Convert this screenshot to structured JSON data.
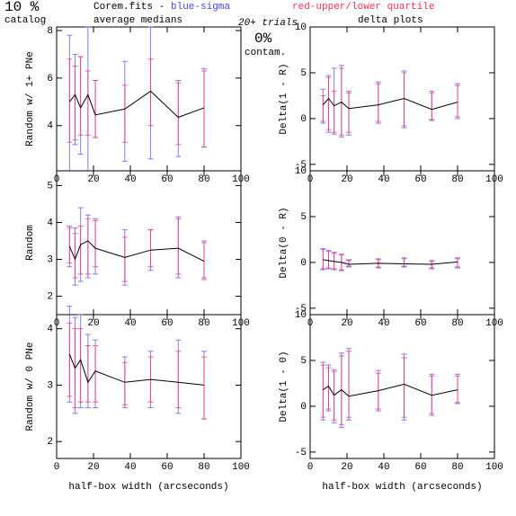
{
  "header": {
    "pct": "10 %",
    "catalog": "catalog",
    "file": "Corem.fits -",
    "blue": "blue-sigma",
    "red": "red-upper/lower quartile",
    "medians": "average medians",
    "trials": "20+ trials",
    "contam_pct": "0%",
    "contam": "contam.",
    "delta": "delta plots"
  },
  "chart_data": [
    {
      "type": "line",
      "ylabel": "Random w/ 1+ PNe",
      "xlim": [
        0,
        100
      ],
      "xticks": [
        0,
        20,
        40,
        60,
        80,
        100
      ],
      "ylim": [
        2.1,
        8.15
      ],
      "yticks": [
        4,
        6,
        8
      ],
      "x": [
        7,
        10,
        13,
        17,
        21,
        37,
        51,
        66,
        80
      ],
      "values": [
        5.0,
        5.3,
        4.75,
        5.3,
        4.45,
        4.7,
        5.45,
        4.35,
        4.75
      ],
      "blue_low": [
        2.1,
        3.2,
        2.8,
        2.1,
        3.5,
        2.5,
        2.6,
        2.7,
        3.1
      ],
      "blue_high": [
        7.8,
        7.0,
        6.9,
        8.15,
        5.9,
        6.7,
        8.15,
        5.9,
        6.4
      ],
      "red_low": [
        3.3,
        3.4,
        3.6,
        3.6,
        3.5,
        3.3,
        4.0,
        3.2,
        3.1
      ],
      "red_high": [
        6.8,
        6.5,
        6.9,
        6.3,
        5.9,
        5.7,
        6.8,
        5.8,
        6.3
      ]
    },
    {
      "type": "line",
      "ylabel": "Delta(1 - R)",
      "xlim": [
        0,
        100
      ],
      "xticks": [
        0,
        20,
        40,
        60,
        80,
        100
      ],
      "ylim": [
        -5.7,
        10
      ],
      "yticks": [
        -5,
        0,
        5,
        10
      ],
      "x": [
        7,
        10,
        13,
        17,
        21,
        37,
        51,
        66,
        80
      ],
      "values": [
        1.5,
        2.2,
        1.4,
        1.8,
        1.1,
        1.5,
        2.2,
        1.0,
        1.8
      ],
      "blue_low": [
        -0.5,
        -1.5,
        -1.7,
        -2,
        -1.8,
        -0.5,
        -1.0,
        -0.2,
        0.0
      ],
      "blue_high": [
        3.2,
        4.7,
        5.5,
        5.8,
        3.0,
        4.0,
        5.2,
        3.0,
        3.8
      ],
      "red_low": [
        -0.3,
        -1.2,
        -1.5,
        -1.8,
        -1.5,
        -0.3,
        -0.8,
        -0.1,
        0.2
      ],
      "red_high": [
        2.5,
        4.5,
        3.0,
        5.5,
        2.8,
        3.8,
        5.0,
        2.8,
        3.6
      ]
    },
    {
      "type": "line",
      "ylabel": "Random",
      "xlim": [
        0,
        100
      ],
      "xticks": [
        0,
        20,
        40,
        60,
        80,
        100
      ],
      "ylim": [
        1.5,
        5.4
      ],
      "yticks": [
        2,
        3,
        4,
        5
      ],
      "x": [
        7,
        10,
        13,
        17,
        21,
        37,
        51,
        66,
        80
      ],
      "values": [
        3.35,
        3.0,
        3.4,
        3.5,
        3.3,
        3.05,
        3.25,
        3.3,
        2.95
      ],
      "blue_low": [
        2.8,
        2.3,
        2.4,
        2.5,
        2.6,
        2.3,
        2.7,
        2.5,
        2.5
      ],
      "blue_high": [
        3.9,
        3.85,
        4.4,
        4.2,
        4.1,
        3.8,
        3.8,
        4.15,
        3.5
      ],
      "red_low": [
        2.9,
        2.5,
        2.6,
        2.6,
        2.8,
        2.4,
        2.8,
        2.6,
        2.45
      ],
      "red_high": [
        3.85,
        3.7,
        3.9,
        4.1,
        4.05,
        3.6,
        3.8,
        4.1,
        3.45
      ]
    },
    {
      "type": "line",
      "ylabel": "Delta(0 - R)",
      "xlim": [
        0,
        100
      ],
      "xticks": [
        0,
        20,
        40,
        60,
        80,
        100
      ],
      "ylim": [
        -5.7,
        10
      ],
      "yticks": [
        -5,
        0,
        5,
        10
      ],
      "x": [
        7,
        10,
        13,
        17,
        21,
        37,
        51,
        66,
        80
      ],
      "values": [
        0.3,
        0.2,
        0.1,
        0,
        -0.2,
        -0.1,
        -0.15,
        -0.2,
        0.05
      ],
      "blue_low": [
        -0.8,
        -0.7,
        -0.8,
        -0.9,
        -0.5,
        -0.6,
        -0.5,
        -0.7,
        -0.6
      ],
      "blue_high": [
        1.5,
        1.3,
        1.1,
        0.9,
        0.3,
        0.4,
        0.5,
        0.2,
        0.5
      ],
      "red_low": [
        -0.7,
        -0.6,
        -0.7,
        -0.8,
        -0.4,
        -0.5,
        -0.4,
        -0.6,
        -0.5
      ],
      "red_high": [
        1.4,
        1.2,
        1.0,
        0.8,
        0.2,
        0.3,
        0.4,
        0.1,
        0.4
      ]
    },
    {
      "type": "line",
      "ylabel": "Random w/ 0 PNe",
      "xlabel": "half-box width (arcseconds)",
      "xlim": [
        0,
        100
      ],
      "xticks": [
        0,
        20,
        40,
        60,
        80,
        100
      ],
      "ylim": [
        1.7,
        4.25
      ],
      "yticks": [
        2,
        3,
        4
      ],
      "x": [
        7,
        10,
        13,
        17,
        21,
        37,
        51,
        66,
        80
      ],
      "values": [
        3.55,
        3.3,
        3.45,
        3.05,
        3.25,
        3.05,
        3.1,
        3.05,
        3.0
      ],
      "blue_low": [
        2.7,
        2.5,
        2.6,
        2.6,
        2.6,
        2.6,
        2.6,
        2.5,
        2.4
      ],
      "blue_high": [
        4.4,
        4.2,
        4.25,
        3.9,
        3.8,
        3.5,
        3.6,
        3.8,
        3.6
      ],
      "red_low": [
        2.8,
        2.6,
        2.7,
        2.7,
        2.7,
        2.65,
        2.7,
        2.6,
        2.4
      ],
      "red_high": [
        4.1,
        4.0,
        4.0,
        3.7,
        3.7,
        3.4,
        3.5,
        3.6,
        3.5
      ]
    },
    {
      "type": "line",
      "ylabel": "Delta(1 - 0)",
      "xlabel": "half-box width (arcseconds)",
      "xlim": [
        0,
        100
      ],
      "xticks": [
        0,
        20,
        40,
        60,
        80,
        100
      ],
      "ylim": [
        -5.7,
        10
      ],
      "yticks": [
        -5,
        0,
        5,
        10
      ],
      "x": [
        7,
        10,
        13,
        17,
        21,
        37,
        51,
        66,
        80
      ],
      "values": [
        1.8,
        2.2,
        1.2,
        1.8,
        1.1,
        1.7,
        2.4,
        1.2,
        1.8
      ],
      "blue_low": [
        -1.5,
        -0.5,
        -1.8,
        -2.3,
        -1.5,
        -0.5,
        -1.5,
        -1.0,
        0.3
      ],
      "blue_high": [
        4.8,
        4.5,
        4.0,
        5.8,
        6.3,
        3.9,
        5.7,
        3.5,
        3.5
      ],
      "red_low": [
        -1.2,
        -0.3,
        -1.5,
        -2,
        -1.2,
        -0.3,
        -1.2,
        -0.8,
        0.4
      ],
      "red_high": [
        4.5,
        4.2,
        3.8,
        5.5,
        6.0,
        3.6,
        5.3,
        3.3,
        3.3
      ]
    }
  ]
}
